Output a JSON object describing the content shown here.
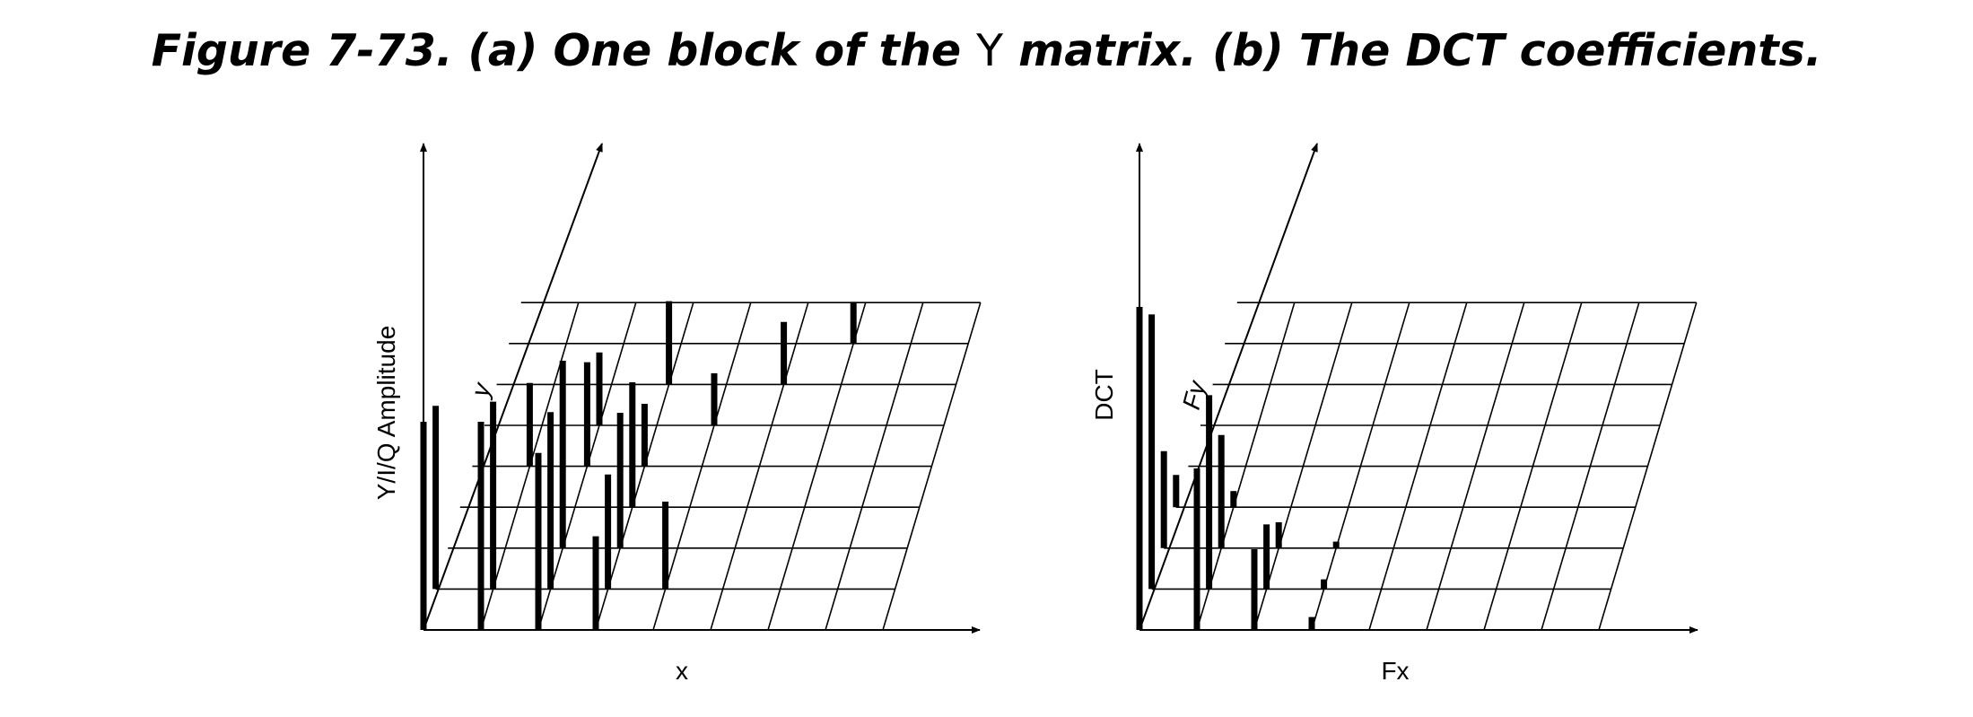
{
  "caption": {
    "before": "Figure 7-73. (a) One block of the ",
    "y_letter": "Y",
    "after": " matrix. (b) The DCT coefficients."
  },
  "panels": [
    {
      "id": "a",
      "vertical_axis_label": "Y/I/Q Amplitude",
      "depth_axis_label": "y",
      "horizontal_axis_label": "x",
      "grid": {
        "cols": 8,
        "rows": 8
      },
      "bars": [
        {
          "col": 0,
          "row": 0,
          "height": 1.0
        },
        {
          "col": 0,
          "row": 1,
          "height": 0.88
        },
        {
          "col": 1,
          "row": 0,
          "height": 1.0
        },
        {
          "col": 1,
          "row": 1,
          "height": 0.9
        },
        {
          "col": 1,
          "row": 4,
          "height": 0.4
        },
        {
          "col": 2,
          "row": 0,
          "height": 0.85
        },
        {
          "col": 2,
          "row": 1,
          "height": 0.85
        },
        {
          "col": 2,
          "row": 2,
          "height": 0.9
        },
        {
          "col": 2,
          "row": 4,
          "height": 0.5
        },
        {
          "col": 2,
          "row": 5,
          "height": 0.35
        },
        {
          "col": 3,
          "row": 0,
          "height": 0.45
        },
        {
          "col": 3,
          "row": 1,
          "height": 0.55
        },
        {
          "col": 3,
          "row": 2,
          "height": 0.65
        },
        {
          "col": 3,
          "row": 3,
          "height": 0.6
        },
        {
          "col": 3,
          "row": 4,
          "height": 0.3
        },
        {
          "col": 3,
          "row": 6,
          "height": 0.4
        },
        {
          "col": 4,
          "row": 1,
          "height": 0.42
        },
        {
          "col": 4,
          "row": 5,
          "height": 0.25
        },
        {
          "col": 5,
          "row": 6,
          "height": 0.3
        },
        {
          "col": 6,
          "row": 7,
          "height": 0.2
        }
      ]
    },
    {
      "id": "b",
      "vertical_axis_label": "DCT",
      "depth_axis_label": "Fy",
      "horizontal_axis_label": "Fx",
      "grid": {
        "cols": 8,
        "rows": 8
      },
      "bars": [
        {
          "col": 0,
          "row": 0,
          "height": 1.0
        },
        {
          "col": 0,
          "row": 1,
          "height": 0.85
        },
        {
          "col": 0,
          "row": 2,
          "height": 0.3
        },
        {
          "col": 0,
          "row": 3,
          "height": 0.1
        },
        {
          "col": 1,
          "row": 0,
          "height": 0.5
        },
        {
          "col": 1,
          "row": 1,
          "height": 0.6
        },
        {
          "col": 1,
          "row": 2,
          "height": 0.35
        },
        {
          "col": 1,
          "row": 3,
          "height": 0.05
        },
        {
          "col": 2,
          "row": 0,
          "height": 0.25
        },
        {
          "col": 2,
          "row": 1,
          "height": 0.2
        },
        {
          "col": 2,
          "row": 2,
          "height": 0.08
        },
        {
          "col": 3,
          "row": 0,
          "height": 0.04
        },
        {
          "col": 3,
          "row": 1,
          "height": 0.03
        },
        {
          "col": 3,
          "row": 2,
          "height": 0.02
        }
      ]
    }
  ]
}
